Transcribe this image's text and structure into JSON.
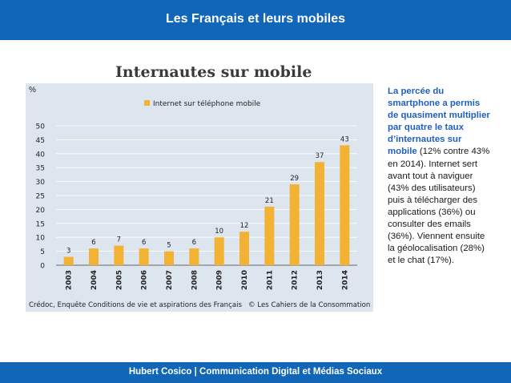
{
  "header": {
    "title": "Les Français et leurs mobiles"
  },
  "footer": {
    "text": "Hubert Cosico | Communication Digital et Médias Sociaux"
  },
  "side_panel": {
    "highlight": "La percée du smartphone a permis de quasiment multiplier par quatre le taux d’internautes sur mobile",
    "body": " (12% contre 43% en 2014). Internet sert avant tout à naviguer (43% des utilisateurs) puis à télécharger des applications (36%) ou consulter des emails (36%). Viennent ensuite la géolocalisation (28%) et le chat (17%)."
  },
  "chart_data": {
    "type": "bar",
    "title": "Internautes sur mobile",
    "ylabel": "%",
    "xlabel": "",
    "categories": [
      "2003",
      "2004",
      "2005",
      "2006",
      "2007",
      "2008",
      "2009",
      "2010",
      "2011",
      "2012",
      "2013",
      "2014"
    ],
    "series": [
      {
        "name": "Internet sur téléphone mobile",
        "values": [
          3,
          6,
          7,
          6,
          5,
          6,
          10,
          12,
          21,
          29,
          37,
          43
        ]
      }
    ],
    "ylim": [
      0,
      50
    ],
    "yticks": [
      0,
      5,
      10,
      15,
      20,
      25,
      30,
      35,
      40,
      45,
      50
    ],
    "grid": true,
    "legend": "top",
    "bar_color": "#f2b233",
    "source": "Crédoc, Enquête Conditions de vie et aspirations des Français",
    "copyright": "© Les Cahiers de la Consommation"
  }
}
